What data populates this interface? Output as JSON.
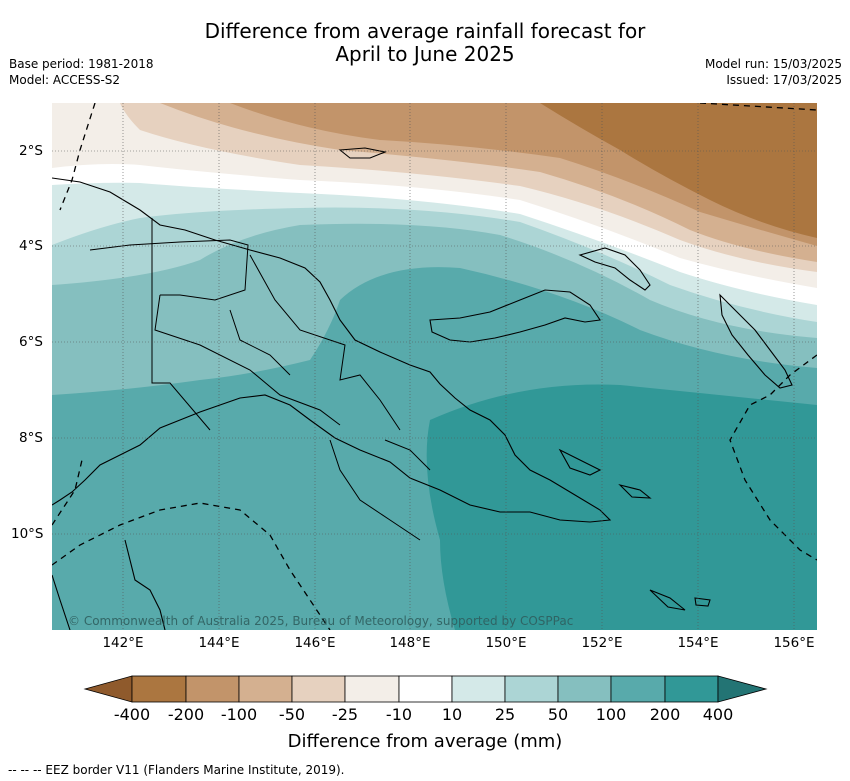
{
  "title_line1": "Difference from average rainfall forecast for",
  "title_line2": "April to June 2025",
  "meta_left": {
    "base_period": "Base period: 1981-2018",
    "model": "Model: ACCESS-S2"
  },
  "meta_right": {
    "model_run": "Model run: 15/03/2025",
    "issued": "Issued: 17/03/2025"
  },
  "lat_ticks": [
    "2°S",
    "4°S",
    "6°S",
    "8°S",
    "10°S"
  ],
  "lon_ticks": [
    "142°E",
    "144°E",
    "146°E",
    "148°E",
    "150°E",
    "152°E",
    "154°E",
    "156°E"
  ],
  "copyright": "© Commonwealth of Australia 2025, Bureau of Meteorology, supported by COSPPac",
  "colorbar": {
    "title": "Difference from average (mm)",
    "labels": [
      "-400",
      "-200",
      "-100",
      "-50",
      "-25",
      "-10",
      "10",
      "25",
      "50",
      "100",
      "200",
      "400"
    ],
    "colors": {
      "below_-400": "#8f5a2c",
      "-400_-200": "#ab7640",
      "-200_-100": "#c2946a",
      "-100_-50": "#d4b090",
      "-50_-25": "#e6d1bf",
      "-25_-10": "#f3eee8",
      "-10_10": "#ffffff",
      "10_25": "#d4e9e8",
      "25_50": "#acd5d5",
      "50_100": "#85bfbf",
      "100_200": "#58aaab",
      "200_400": "#319897",
      "above_400": "#237474"
    }
  },
  "legend_eez": "--  --  -- EEZ border V11 (Flanders Marine Institute, 2019)."
}
